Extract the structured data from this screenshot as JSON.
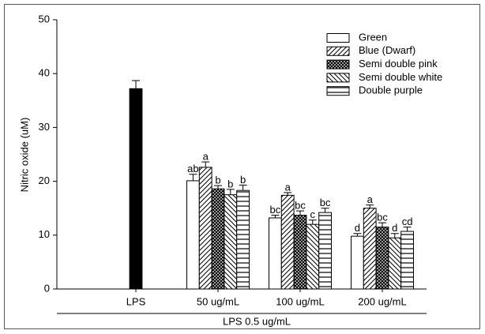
{
  "chart_data": {
    "type": "grouped-bar",
    "ylabel": "Nitric oxide (uM)",
    "xlabel": "LPS 0.5 ug/mL",
    "categories": [
      "LPS",
      "50 ug/mL",
      "100 ug/mL",
      "200 ug/mL"
    ],
    "ylim": [
      0,
      50
    ],
    "yticks": [
      0,
      10,
      20,
      30,
      40,
      50
    ],
    "legend": "top-right",
    "control": {
      "value": 37.2,
      "error": 1.5,
      "color": "#000000"
    },
    "series": [
      {
        "name": "Green",
        "pattern": "none",
        "color": "#000000",
        "values": [
          null,
          20.1,
          13.2,
          9.8
        ],
        "errors": [
          null,
          1.2,
          0.5,
          0.5
        ],
        "labels": [
          null,
          "ab",
          "bc",
          "d"
        ]
      },
      {
        "name": "Blue (Dwarf)",
        "pattern": "diagonal",
        "color": "#000000",
        "values": [
          null,
          22.6,
          17.4,
          15.0
        ],
        "errors": [
          null,
          1.0,
          0.5,
          0.6
        ],
        "labels": [
          null,
          "a",
          "a",
          "a"
        ]
      },
      {
        "name": "Semi double pink",
        "pattern": "crosshatch",
        "color": "#000000",
        "values": [
          null,
          18.6,
          13.7,
          11.5
        ],
        "errors": [
          null,
          0.6,
          0.8,
          0.8
        ],
        "labels": [
          null,
          "b",
          "bc",
          "bc"
        ]
      },
      {
        "name": "Semi double white",
        "pattern": "back-diagonal",
        "color": "#000000",
        "values": [
          null,
          17.5,
          12.0,
          9.5
        ],
        "errors": [
          null,
          1.0,
          0.8,
          0.8
        ],
        "labels": [
          null,
          "b",
          "c",
          "d"
        ]
      },
      {
        "name": "Double purple",
        "pattern": "horizontal",
        "color": "#000000",
        "values": [
          null,
          18.3,
          14.2,
          10.7
        ],
        "errors": [
          null,
          1.0,
          0.8,
          0.8
        ],
        "labels": [
          null,
          "b",
          "bc",
          "cd"
        ]
      }
    ]
  }
}
